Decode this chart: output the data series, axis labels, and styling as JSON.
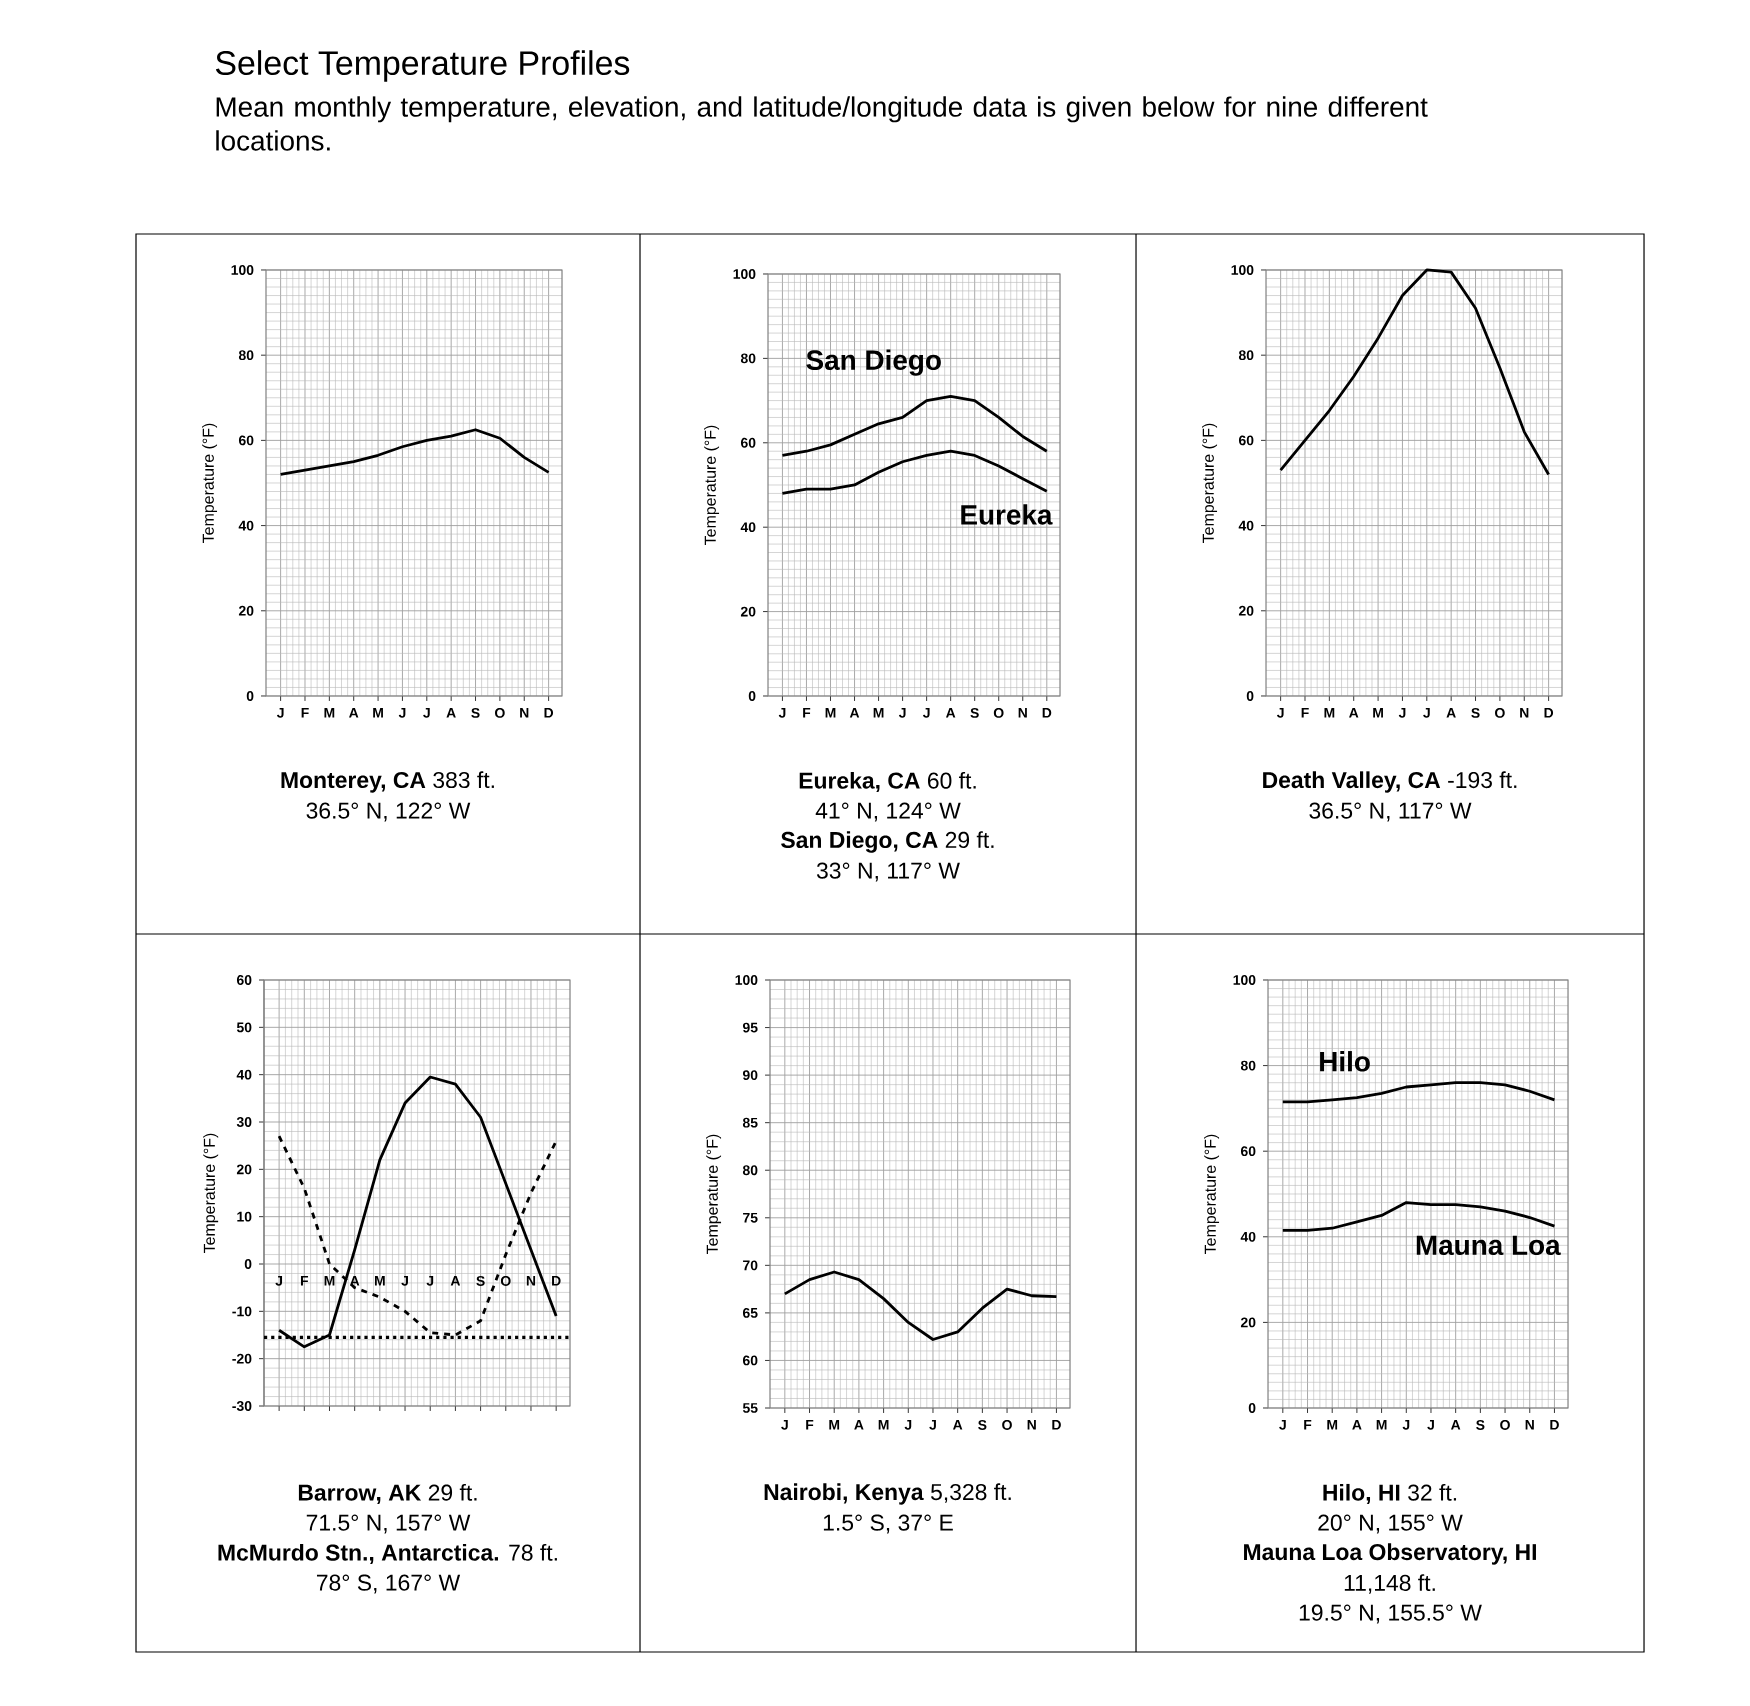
{
  "chart_data": [
    {
      "type": "line",
      "title": "Select Temperature Profiles",
      "subtitle": "Mean monthly temperature, elevation, and latitude/longitude data is given below for nine different locations.",
      "ylabel": "Temperature (°F)",
      "categories": [
        "J",
        "F",
        "M",
        "A",
        "M",
        "J",
        "J",
        "A",
        "S",
        "O",
        "N",
        "D"
      ],
      "ylim": [
        0,
        100
      ],
      "yticks": [
        0,
        20,
        40,
        60,
        80,
        100
      ],
      "grid": true,
      "series": [
        {
          "color": "#000000",
          "values": [
            52,
            53,
            54,
            55,
            56.5,
            58.5,
            60,
            61,
            62.5,
            60.5,
            56,
            52.5
          ]
        }
      ],
      "annotations": [
        "**Monterey, CA** 383 ft.",
        "36.5° N, 122° W"
      ]
    },
    {
      "type": "line",
      "ylabel": "Temperature (°F)",
      "categories": [
        "J",
        "F",
        "M",
        "A",
        "M",
        "J",
        "J",
        "A",
        "S",
        "O",
        "N",
        "D"
      ],
      "ylim": [
        0,
        100
      ],
      "yticks": [
        0,
        20,
        40,
        60,
        80,
        100
      ],
      "grid": true,
      "series": [
        {
          "name": "San Diego",
          "color": "#000000",
          "values": [
            57,
            58,
            59.5,
            62,
            64.5,
            66,
            70,
            71,
            70,
            66,
            61.5,
            58
          ]
        },
        {
          "name": "Eureka",
          "color": "#000000",
          "values": [
            48,
            49,
            49,
            50,
            53,
            55.5,
            57,
            58,
            57,
            54.5,
            51.5,
            48.5
          ]
        }
      ],
      "annotations": [
        "**Eureka, CA** 60 ft.",
        "41° N, 124° W",
        "**San Diego, CA** 29 ft.",
        "33° N, 117° W"
      ]
    },
    {
      "type": "line",
      "ylabel": "Temperature (°F)",
      "categories": [
        "J",
        "F",
        "M",
        "A",
        "M",
        "J",
        "J",
        "A",
        "S",
        "O",
        "N",
        "D"
      ],
      "ylim": [
        0,
        100
      ],
      "yticks": [
        0,
        20,
        40,
        60,
        80,
        100
      ],
      "grid": true,
      "series": [
        {
          "color": "#000000",
          "values": [
            53,
            60,
            67,
            75,
            84,
            94,
            100,
            99.5,
            91,
            77,
            62,
            52
          ]
        }
      ],
      "annotations": [
        "**Death Valley, CA** -193 ft.",
        "36.5° N, 117° W"
      ]
    },
    {
      "type": "line",
      "ylabel": "Temperature (°F)",
      "categories": [
        "J",
        "F",
        "M",
        "A",
        "M",
        "J",
        "J",
        "A",
        "S",
        "O",
        "N",
        "D"
      ],
      "ylim": [
        -30,
        60
      ],
      "yticks": [
        -30,
        -20,
        -10,
        0,
        10,
        20,
        30,
        40,
        50,
        60
      ],
      "grid": true,
      "series": [
        {
          "color": "#000000",
          "line_style": "solid",
          "values": [
            -14,
            -17.5,
            -15,
            3,
            22,
            34,
            39.5,
            38,
            31,
            17,
            3,
            -11
          ]
        },
        {
          "color": "#000000",
          "line_style": "dashed",
          "values": [
            27,
            16,
            0,
            -5,
            -7,
            -10,
            -14.5,
            -15,
            -12,
            2,
            15,
            26
          ]
        }
      ],
      "ref_lines": [
        {
          "axis": "y",
          "value": -15.5,
          "line_style": "dotted",
          "color": "#000000"
        }
      ],
      "annotations": [
        "**Barrow, AK** 29 ft.",
        "71.5° N, 157° W",
        "**McMurdo Stn., Antarctica.** 78 ft.",
        "78° S, 167° W"
      ]
    },
    {
      "type": "line",
      "ylabel": "Temperature (°F)",
      "categories": [
        "J",
        "F",
        "M",
        "A",
        "M",
        "J",
        "J",
        "A",
        "S",
        "O",
        "N",
        "D"
      ],
      "ylim": [
        55,
        100
      ],
      "yticks": [
        55,
        60,
        65,
        70,
        75,
        80,
        85,
        90,
        95,
        100
      ],
      "grid": true,
      "series": [
        {
          "color": "#000000",
          "values": [
            67,
            68.5,
            69.3,
            68.5,
            66.5,
            64,
            62.2,
            63,
            65.5,
            67.5,
            66.8,
            66.7
          ]
        }
      ],
      "annotations": [
        "**Nairobi, Kenya** 5,328 ft.",
        "1.5° S, 37° E"
      ]
    },
    {
      "type": "line",
      "ylabel": "Temperature (°F)",
      "categories": [
        "J",
        "F",
        "M",
        "A",
        "M",
        "J",
        "J",
        "A",
        "S",
        "O",
        "N",
        "D"
      ],
      "ylim": [
        0,
        100
      ],
      "yticks": [
        0,
        20,
        40,
        60,
        80,
        100
      ],
      "grid": true,
      "series": [
        {
          "name": "Hilo",
          "color": "#000000",
          "values": [
            71.5,
            71.5,
            72,
            72.5,
            73.5,
            75,
            75.5,
            76,
            76,
            75.5,
            74,
            72
          ]
        },
        {
          "name": "Mauna Loa",
          "color": "#000000",
          "values": [
            41.5,
            41.5,
            42,
            43.5,
            45,
            48,
            47.5,
            47.5,
            47,
            46,
            44.5,
            42.5
          ]
        }
      ],
      "annotations": [
        "**Hilo, HI** 32 ft.",
        "20° N, 155° W",
        "**Mauna Loa Observatory, HI**",
        "11,148 ft.",
        "19.5° N, 155.5° W"
      ]
    }
  ]
}
